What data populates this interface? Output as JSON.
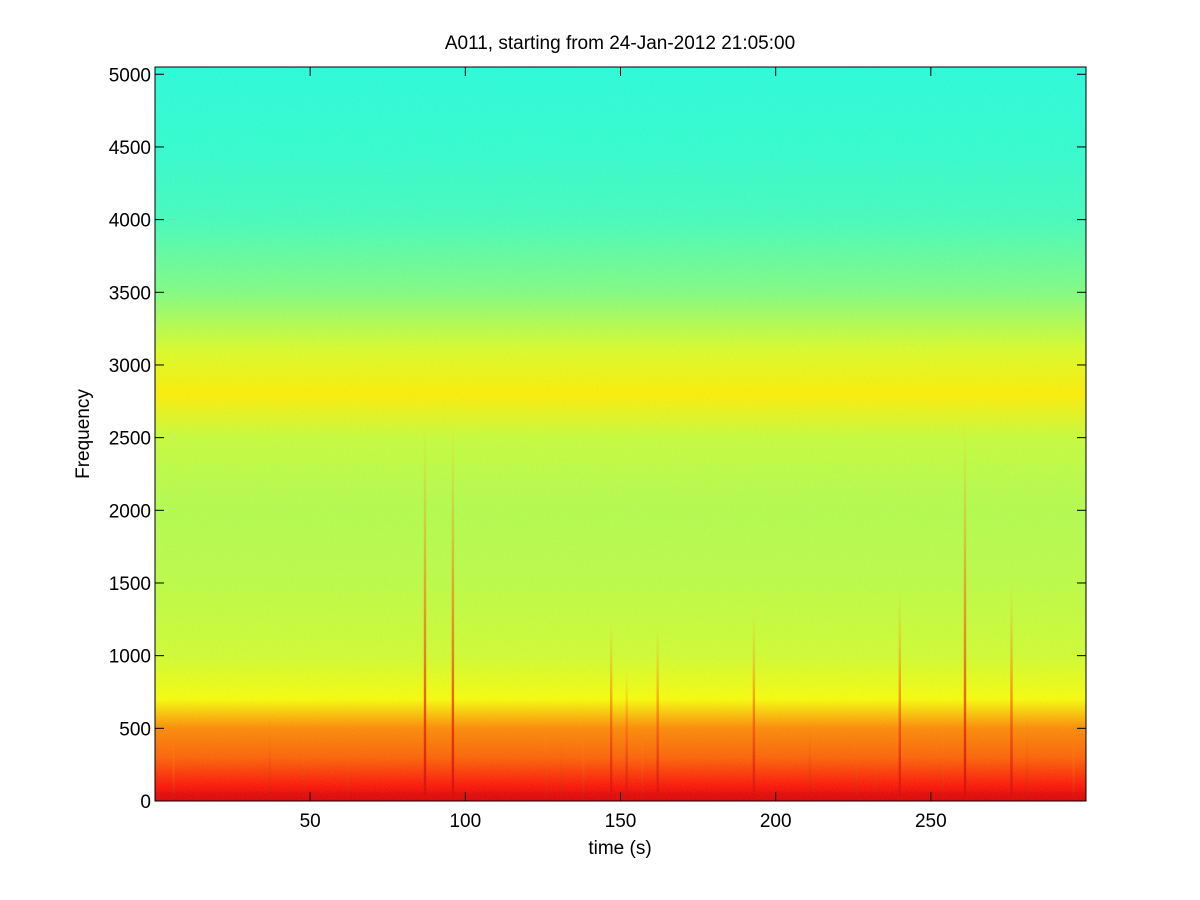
{
  "chart_data": {
    "type": "heatmap",
    "title": "A011, starting from 24-Jan-2012 21:05:00",
    "xlabel": "time (s)",
    "ylabel": "Frequency",
    "xlim": [
      0,
      300
    ],
    "ylim": [
      0,
      5050
    ],
    "x_ticks": [
      50,
      100,
      150,
      200,
      250
    ],
    "y_ticks": [
      0,
      500,
      1000,
      1500,
      2000,
      2500,
      3000,
      3500,
      4000,
      4500,
      5000
    ],
    "grid": false,
    "legend": "none",
    "colormap": "jet",
    "colors": {
      "high": "#e60000",
      "mid_high": "#ffff00",
      "mid": "#b4ff4b",
      "low": "#4bffa8",
      "floor": "#3cd4c8"
    },
    "intensity_profile": [
      {
        "frequency": 0,
        "level": 0.92
      },
      {
        "frequency": 100,
        "level": 0.86
      },
      {
        "frequency": 300,
        "level": 0.78
      },
      {
        "frequency": 500,
        "level": 0.74
      },
      {
        "frequency": 700,
        "level": 0.62
      },
      {
        "frequency": 1000,
        "level": 0.58
      },
      {
        "frequency": 1500,
        "level": 0.56
      },
      {
        "frequency": 2000,
        "level": 0.55
      },
      {
        "frequency": 2500,
        "level": 0.57
      },
      {
        "frequency": 2800,
        "level": 0.64
      },
      {
        "frequency": 3100,
        "level": 0.59
      },
      {
        "frequency": 3500,
        "level": 0.5
      },
      {
        "frequency": 4000,
        "level": 0.44
      },
      {
        "frequency": 4500,
        "level": 0.42
      },
      {
        "frequency": 5050,
        "level": 0.41
      }
    ],
    "bursts": [
      {
        "time": 6,
        "max_frequency": 400
      },
      {
        "time": 37,
        "max_frequency": 600
      },
      {
        "time": 48,
        "max_frequency": 500
      },
      {
        "time": 62,
        "max_frequency": 500
      },
      {
        "time": 87,
        "max_frequency": 2600
      },
      {
        "time": 96,
        "max_frequency": 2600
      },
      {
        "time": 126,
        "max_frequency": 500
      },
      {
        "time": 131,
        "max_frequency": 550
      },
      {
        "time": 138,
        "max_frequency": 450
      },
      {
        "time": 147,
        "max_frequency": 1250
      },
      {
        "time": 152,
        "max_frequency": 900
      },
      {
        "time": 157,
        "max_frequency": 450
      },
      {
        "time": 162,
        "max_frequency": 1200
      },
      {
        "time": 193,
        "max_frequency": 1300
      },
      {
        "time": 211,
        "max_frequency": 600
      },
      {
        "time": 226,
        "max_frequency": 500
      },
      {
        "time": 232,
        "max_frequency": 500
      },
      {
        "time": 240,
        "max_frequency": 1450
      },
      {
        "time": 254,
        "max_frequency": 500
      },
      {
        "time": 261,
        "max_frequency": 2600
      },
      {
        "time": 276,
        "max_frequency": 1500
      },
      {
        "time": 281,
        "max_frequency": 600
      },
      {
        "time": 296,
        "max_frequency": 400
      }
    ]
  }
}
